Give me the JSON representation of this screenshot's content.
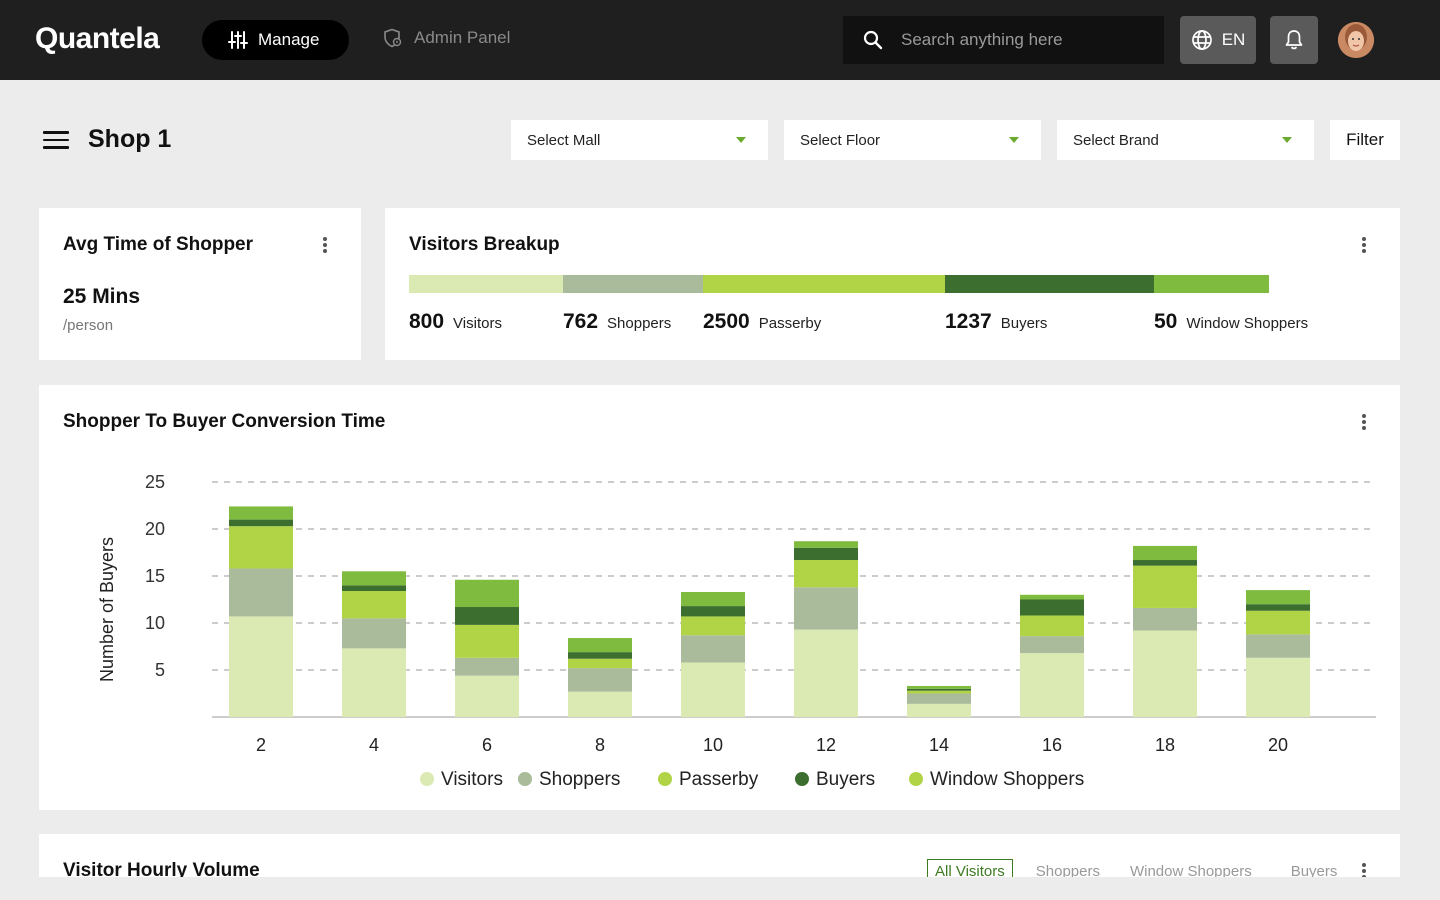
{
  "header": {
    "logo": "Quantela",
    "manage_label": "Manage",
    "admin_label": "Admin Panel",
    "search_placeholder": "Search anything here",
    "lang_label": "EN"
  },
  "page": {
    "title": "Shop 1",
    "selects": [
      "Select Mall",
      "Select Floor",
      "Select Brand"
    ],
    "filter_label": "Filter"
  },
  "avg_time": {
    "title": "Avg Time of Shopper",
    "value": "25 Mins",
    "unit": "/person"
  },
  "visitors_breakup": {
    "title": "Visitors Breakup",
    "items": [
      {
        "value": "800",
        "label": "Visitors",
        "color": "#dbe9b3"
      },
      {
        "value": "762",
        "label": "Shoppers",
        "color": "#a9bb9a"
      },
      {
        "value": "2500",
        "label": "Passerby",
        "color": "#b1d446"
      },
      {
        "value": "1237",
        "label": "Buyers",
        "color": "#3c6e2f"
      },
      {
        "value": "50",
        "label": "Window Shoppers",
        "color": "#7fbb3f"
      }
    ]
  },
  "conversion": {
    "title": "Shopper To Buyer Conversion Time"
  },
  "chart_data": {
    "type": "bar",
    "stacked": true,
    "title": "Shopper To Buyer Conversion Time",
    "xlabel": "",
    "ylabel": "Number of Buyers",
    "ylim": [
      0,
      25
    ],
    "yticks": [
      5,
      10,
      15,
      20,
      25
    ],
    "grid": true,
    "legend_position": "bottom",
    "categories": [
      "2",
      "4",
      "6",
      "8",
      "10",
      "12",
      "14",
      "16",
      "18",
      "20"
    ],
    "series": [
      {
        "name": "Visitors",
        "color": "#dbe9b3",
        "values": [
          10.7,
          7.3,
          4.4,
          2.7,
          5.8,
          9.3,
          1.4,
          6.8,
          9.2,
          6.3
        ]
      },
      {
        "name": "Shoppers",
        "color": "#a9bb9a",
        "values": [
          5.1,
          3.2,
          1.9,
          2.5,
          2.9,
          4.5,
          1.1,
          1.8,
          2.4,
          2.5
        ]
      },
      {
        "name": "Passerby",
        "color": "#b1d446",
        "values": [
          4.5,
          2.9,
          3.5,
          1.0,
          2.0,
          2.9,
          0.3,
          2.2,
          4.5,
          2.5
        ]
      },
      {
        "name": "Buyers",
        "color": "#3c6e2f",
        "values": [
          0.7,
          0.6,
          1.9,
          0.7,
          1.1,
          1.3,
          0.2,
          1.7,
          0.6,
          0.7
        ]
      },
      {
        "name": "Window Shoppers",
        "color": "#7fbb3f",
        "values": [
          1.4,
          1.5,
          2.9,
          1.5,
          1.5,
          0.7,
          0.3,
          0.5,
          1.5,
          1.5
        ]
      }
    ]
  },
  "hourly": {
    "title": "Visitor Hourly Volume",
    "tabs": [
      "All Visitors",
      "Shoppers",
      "Window Shoppers",
      "Buyers"
    ]
  }
}
